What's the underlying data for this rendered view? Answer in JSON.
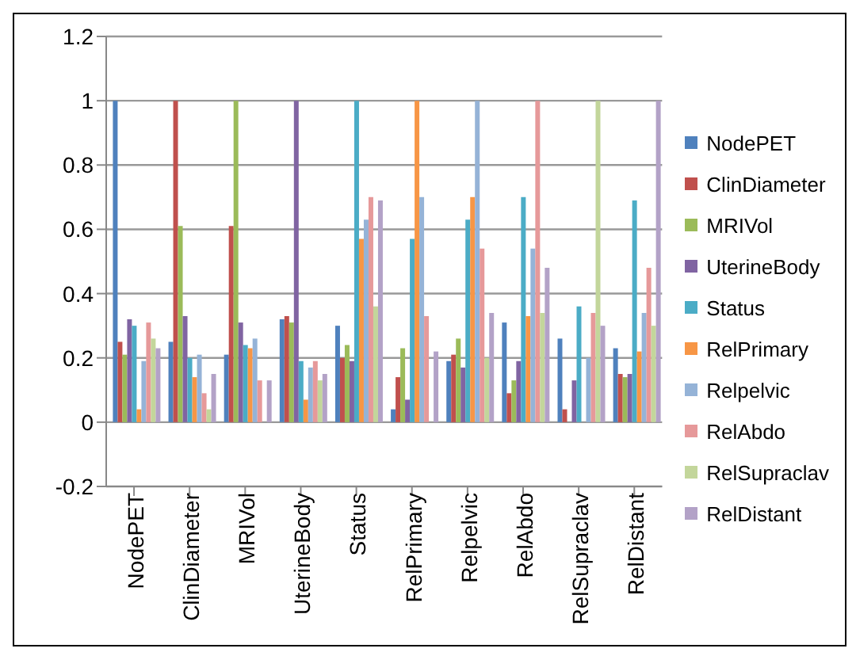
{
  "chart_data": {
    "type": "bar",
    "categories": [
      "NodePET",
      "ClinDiameter",
      "MRIVol",
      "UterineBody",
      "Status",
      "RelPrimary",
      "Relpelvic",
      "RelAbdo",
      "RelSupraclav",
      "RelDistant"
    ],
    "series": [
      {
        "name": "NodePET",
        "color": "#4f81bd",
        "values": [
          1,
          0.25,
          0.21,
          0.32,
          0.3,
          0.04,
          0.19,
          0.31,
          0.26,
          0.23
        ]
      },
      {
        "name": "ClinDiameter",
        "color": "#c0504d",
        "values": [
          0.25,
          1,
          0.61,
          0.33,
          0.2,
          0.14,
          0.21,
          0.09,
          0.04,
          0.15
        ]
      },
      {
        "name": "MRIVol",
        "color": "#9bbb59",
        "values": [
          0.21,
          0.61,
          1,
          0.31,
          0.24,
          0.23,
          0.26,
          0.13,
          0,
          0.14
        ]
      },
      {
        "name": "UterineBody",
        "color": "#8064a2",
        "values": [
          0.32,
          0.33,
          0.31,
          1,
          0.19,
          0.07,
          0.17,
          0.19,
          0.13,
          0.15
        ]
      },
      {
        "name": "Status",
        "color": "#4bacc6",
        "values": [
          0.3,
          0.2,
          0.24,
          0.19,
          1,
          0.57,
          0.63,
          0.7,
          0.36,
          0.69
        ]
      },
      {
        "name": "RelPrimary",
        "color": "#f79646",
        "values": [
          0.04,
          0.14,
          0.23,
          0.07,
          0.57,
          1,
          0.7,
          0.33,
          0,
          0.22
        ]
      },
      {
        "name": "Relpelvic",
        "color": "#95b3d7",
        "values": [
          0.19,
          0.21,
          0.26,
          0.17,
          0.63,
          0.7,
          1,
          0.54,
          0.2,
          0.34
        ]
      },
      {
        "name": "RelAbdo",
        "color": "#e6999a",
        "values": [
          0.31,
          0.09,
          0.13,
          0.19,
          0.7,
          0.33,
          0.54,
          1,
          0.34,
          0.48
        ]
      },
      {
        "name": "RelSupraclav",
        "color": "#c3d69b",
        "values": [
          0.26,
          0.04,
          0,
          0.13,
          0.36,
          0,
          0.2,
          0.34,
          1,
          0.3
        ]
      },
      {
        "name": "RelDistant",
        "color": "#b3a2c7",
        "values": [
          0.23,
          0.15,
          0.13,
          0.15,
          0.69,
          0.22,
          0.34,
          0.48,
          0.3,
          1
        ]
      }
    ],
    "ylim": [
      -0.2,
      1.2
    ],
    "yticks": [
      -0.2,
      0,
      0.2,
      0.4,
      0.6,
      0.8,
      1,
      1.2
    ],
    "grid": "y",
    "legend": "right"
  }
}
